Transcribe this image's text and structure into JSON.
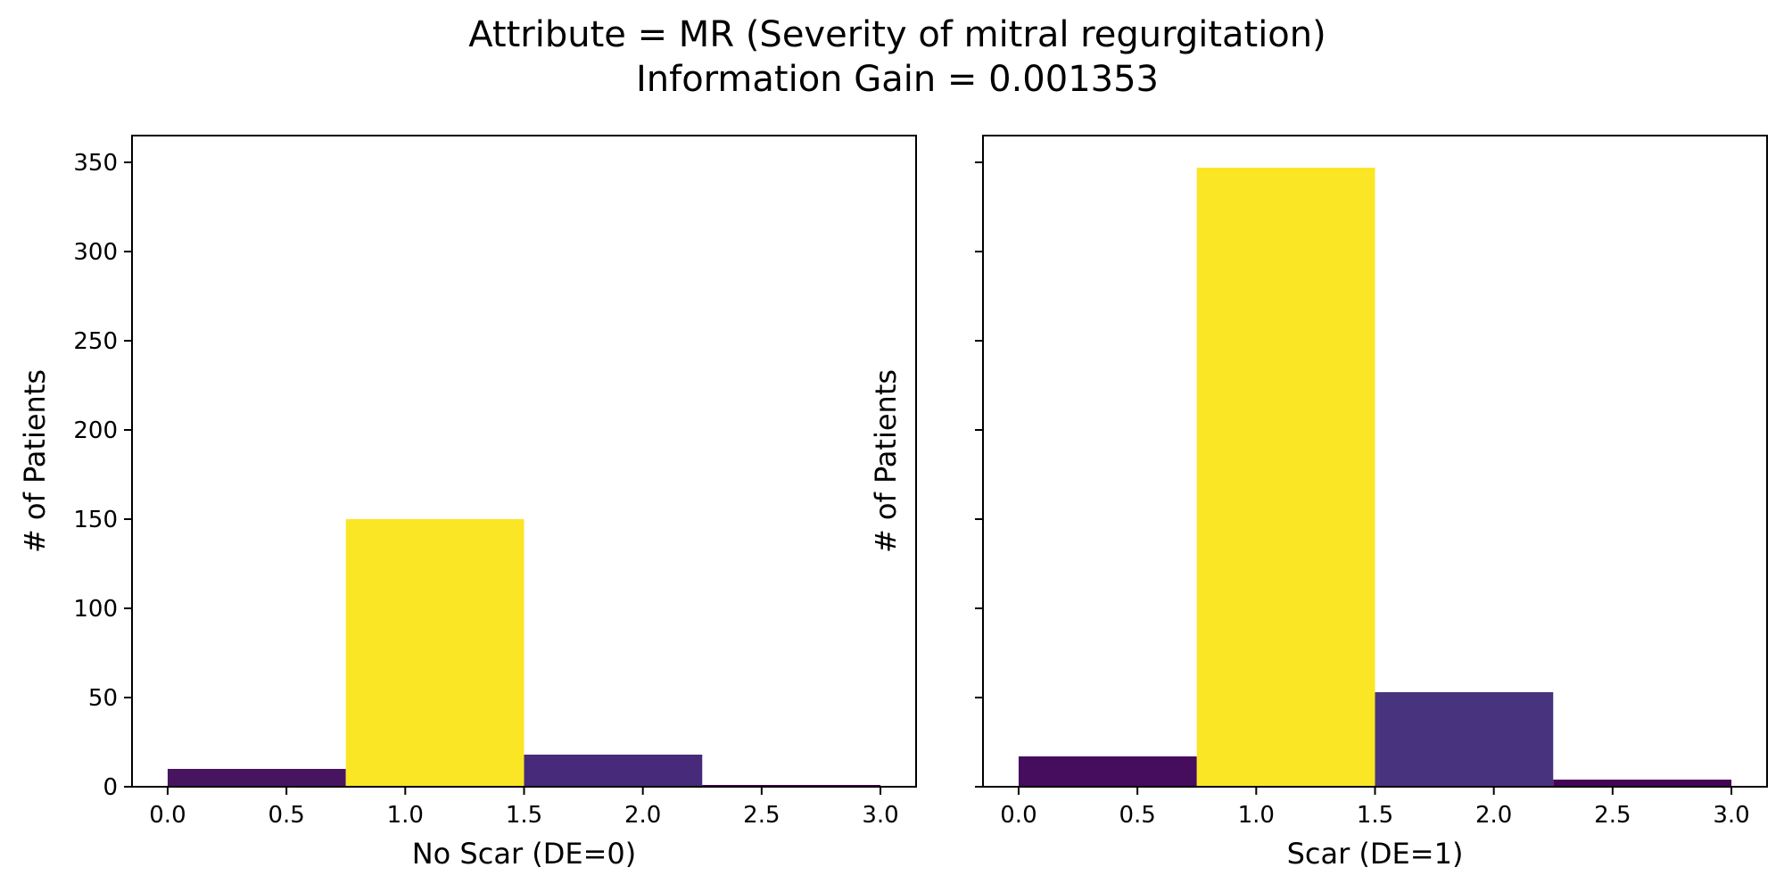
{
  "title": {
    "line1": "Attribute = MR (Severity of mitral regurgitation)",
    "line2": "Information Gain = 0.001353"
  },
  "chart_data": [
    {
      "type": "bar",
      "xlabel": "No Scar (DE=0)",
      "ylabel": "# of Patients",
      "xlim": [
        -0.15,
        3.15
      ],
      "ylim": [
        0,
        365
      ],
      "xticks": [
        "0.0",
        "0.5",
        "1.0",
        "1.5",
        "2.0",
        "2.5",
        "3.0"
      ],
      "yticks": [
        "0",
        "50",
        "100",
        "150",
        "200",
        "250",
        "300",
        "350"
      ],
      "grid": false,
      "bins": [
        {
          "start": 0.0,
          "end": 0.75,
          "value": 10,
          "color": "#47155f"
        },
        {
          "start": 0.75,
          "end": 1.5,
          "value": 150,
          "color": "#fbe626"
        },
        {
          "start": 1.5,
          "end": 2.25,
          "value": 18,
          "color": "#472a79"
        },
        {
          "start": 2.25,
          "end": 3.0,
          "value": 1,
          "color": "#440154"
        }
      ]
    },
    {
      "type": "bar",
      "xlabel": "Scar (DE=1)",
      "ylabel": "# of Patients",
      "xlim": [
        -0.15,
        3.15
      ],
      "ylim": [
        0,
        365
      ],
      "xticks": [
        "0.0",
        "0.5",
        "1.0",
        "1.5",
        "2.0",
        "2.5",
        "3.0"
      ],
      "yticks": [],
      "grid": false,
      "bins": [
        {
          "start": 0.0,
          "end": 0.75,
          "value": 17,
          "color": "#460c5d"
        },
        {
          "start": 0.75,
          "end": 1.5,
          "value": 347,
          "color": "#fbe626"
        },
        {
          "start": 1.5,
          "end": 2.25,
          "value": 53,
          "color": "#48337e"
        },
        {
          "start": 2.25,
          "end": 3.0,
          "value": 4,
          "color": "#450457"
        }
      ]
    }
  ]
}
